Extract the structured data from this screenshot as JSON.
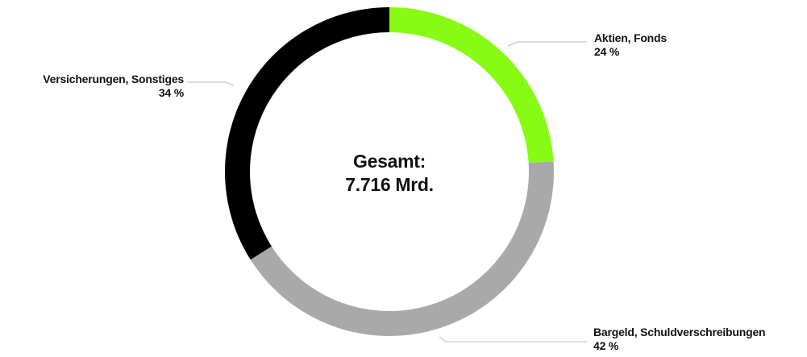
{
  "chart_data": {
    "type": "pie",
    "donut": true,
    "center_label": [
      "Gesamt:",
      "7.716 Mrd."
    ],
    "slices": [
      {
        "label": "Aktien, Fonds",
        "value": 24,
        "value_label": "24 %",
        "color": "#87fb14"
      },
      {
        "label": "Bargeld, Schuldverschreibungen",
        "value": 42,
        "value_label": "42 %",
        "color": "#a9a9a9"
      },
      {
        "label": "Versicherungen, Sonstiges",
        "value": 34,
        "value_label": "34 %",
        "color": "#000000"
      }
    ],
    "start": "top",
    "direction": "clockwise",
    "legend": "none",
    "leader_line_color": "#bbbbbb"
  }
}
